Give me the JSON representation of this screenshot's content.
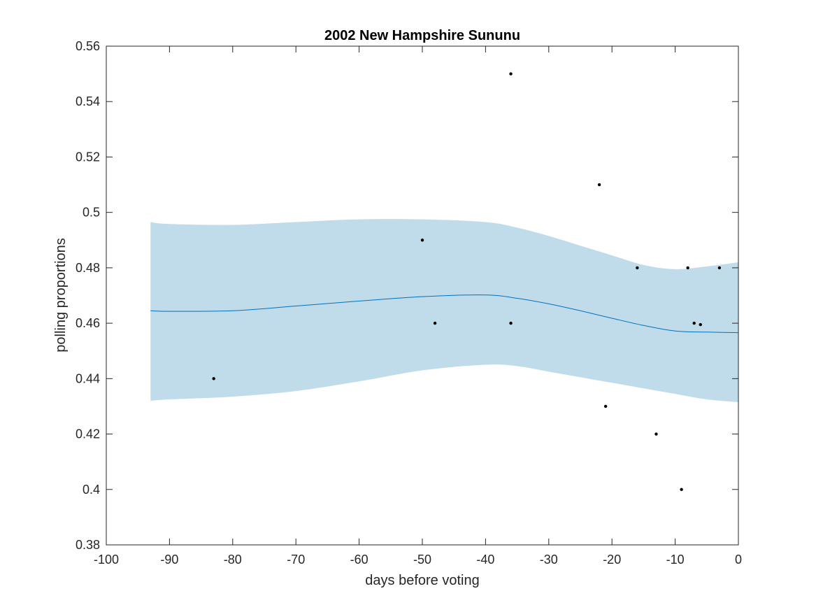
{
  "chart_data": {
    "type": "line",
    "title": "2002 New Hampshire Sununu",
    "xlabel": "days before voting",
    "ylabel": "polling proportions",
    "xlim": [
      -100,
      0
    ],
    "ylim": [
      0.38,
      0.56
    ],
    "x_ticks": [
      -100,
      -90,
      -80,
      -70,
      -60,
      -50,
      -40,
      -30,
      -20,
      -10,
      0
    ],
    "y_ticks": [
      0.38,
      0.4,
      0.42,
      0.44,
      0.46,
      0.48,
      0.5,
      0.52,
      0.54,
      0.56
    ],
    "x_tick_labels": [
      "-100",
      "-90",
      "-80",
      "-70",
      "-60",
      "-50",
      "-40",
      "-30",
      "-20",
      "-10",
      "0"
    ],
    "y_tick_labels": [
      "0.38",
      "0.4",
      "0.42",
      "0.44",
      "0.46",
      "0.48",
      "0.5",
      "0.52",
      "0.54",
      "0.56"
    ],
    "grid": false,
    "colors": {
      "band": "#c0dcea",
      "line": "#0072bd",
      "points": "#000000"
    },
    "band": {
      "x": [
        -93,
        -90,
        -80,
        -70,
        -60,
        -50,
        -40,
        -35,
        -30,
        -25,
        -20,
        -15,
        -10,
        -5,
        0
      ],
      "upper": [
        0.4965,
        0.4958,
        0.4955,
        0.4965,
        0.4975,
        0.4975,
        0.4965,
        0.4945,
        0.4915,
        0.488,
        0.4845,
        0.481,
        0.4795,
        0.4805,
        0.482
      ],
      "lower": [
        0.432,
        0.4325,
        0.4335,
        0.4355,
        0.439,
        0.443,
        0.445,
        0.4445,
        0.4425,
        0.4405,
        0.4385,
        0.4365,
        0.4345,
        0.4325,
        0.4315
      ]
    },
    "series": [
      {
        "type": "line",
        "x": [
          -93,
          -90,
          -80,
          -70,
          -60,
          -50,
          -40,
          -35,
          -30,
          -25,
          -20,
          -15,
          -10,
          -5,
          0
        ],
        "y": [
          0.4645,
          0.4643,
          0.4645,
          0.4662,
          0.468,
          0.4696,
          0.4702,
          0.469,
          0.467,
          0.4645,
          0.4618,
          0.4592,
          0.4572,
          0.4568,
          0.4566
        ]
      },
      {
        "type": "scatter",
        "x": [
          -83,
          -50,
          -48,
          -36,
          -36,
          -22,
          -21,
          -16,
          -13,
          -9,
          -8,
          -7,
          -6,
          -3
        ],
        "y": [
          0.44,
          0.49,
          0.46,
          0.55,
          0.46,
          0.51,
          0.43,
          0.48,
          0.42,
          0.4,
          0.48,
          0.46,
          0.4595,
          0.48
        ]
      }
    ]
  }
}
